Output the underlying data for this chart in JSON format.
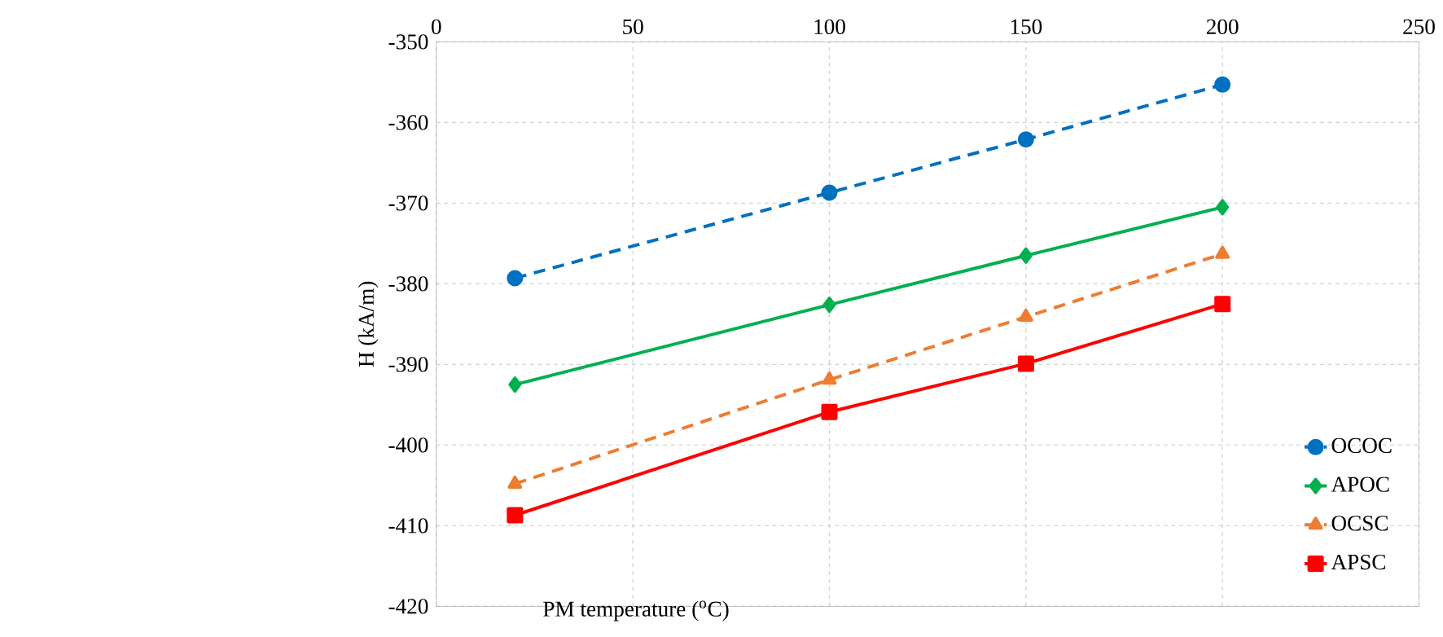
{
  "chart_data": {
    "type": "line",
    "xlabel": "PM temperature ($^{o}$C)",
    "ylabel": "H (kA/m)",
    "x": [
      20,
      100,
      150,
      200
    ],
    "series": [
      {
        "name": "OCOC",
        "color": "#0070c0",
        "marker": "circle",
        "line_style": "dashed",
        "values": [
          -379.3,
          -368.7,
          -362.1,
          -355.3
        ]
      },
      {
        "name": "APOC",
        "color": "#00b050",
        "marker": "diamond",
        "line_style": "solid",
        "values": [
          -392.5,
          -382.6,
          -376.5,
          -370.5
        ]
      },
      {
        "name": "OCSC",
        "color": "#ed7d31",
        "marker": "triangle",
        "line_style": "dashed",
        "values": [
          -404.8,
          -391.9,
          -384.1,
          -376.3
        ]
      },
      {
        "name": "APSC",
        "color": "#ff0000",
        "marker": "square",
        "line_style": "solid",
        "values": [
          -408.7,
          -395.9,
          -389.9,
          -382.5
        ]
      }
    ],
    "xlim": [
      0,
      250
    ],
    "xticks": [
      0,
      50,
      100,
      150,
      200,
      250
    ],
    "ylim": [
      -420,
      -350
    ],
    "yticks": [
      -420,
      -410,
      -400,
      -390,
      -380,
      -370,
      -360,
      -350
    ],
    "grid": true,
    "legend": "bottom right"
  }
}
